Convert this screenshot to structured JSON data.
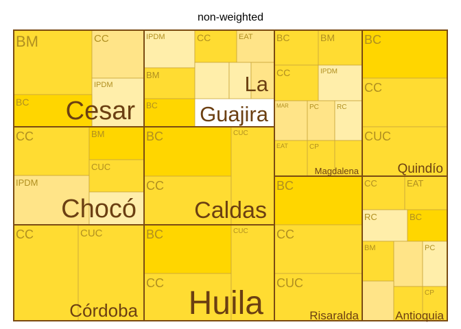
{
  "chart_data": {
    "type": "treemap",
    "title": "non-weighted",
    "colors": {
      "scale": [
        "#ffeeaa",
        "#ffe488",
        "#ffdc32",
        "#ffd600"
      ],
      "region_border": "#7a4a12",
      "tile_border": "#c9a53a",
      "tile_text": "#b08f20",
      "region_text": "#6b3f12"
    },
    "regions": [
      {
        "name": "Cesar",
        "tiles": [
          {
            "label": "BM",
            "value": 2.4,
            "shade": 2
          },
          {
            "label": "CC",
            "value": 1.7,
            "shade": 1
          },
          {
            "label": "IPDM",
            "value": 1.0,
            "shade": 0
          },
          {
            "label": "BC",
            "value": 1.0,
            "shade": 3
          }
        ]
      },
      {
        "name": "La Guajira",
        "tiles": [
          {
            "label": "IPDM",
            "value": 1.2,
            "shade": 0
          },
          {
            "label": "CC",
            "value": 1.0,
            "shade": 2
          },
          {
            "label": "EAT",
            "value": 1.1,
            "shade": 1
          },
          {
            "label": "BM",
            "value": 0.9,
            "shade": 2
          },
          {
            "label": "BC",
            "value": 0.9,
            "shade": 3
          },
          {
            "label": "",
            "value": 0.9,
            "shade": 0
          },
          {
            "label": "",
            "value": 0.4,
            "shade": 0
          },
          {
            "label": "",
            "value": 0.4,
            "shade": 1
          }
        ]
      },
      {
        "name": "Magdalena",
        "tiles": [
          {
            "label": "BC",
            "value": 1.3,
            "shade": 2
          },
          {
            "label": "BM",
            "value": 1.3,
            "shade": 2
          },
          {
            "label": "CC",
            "value": 1.1,
            "shade": 2
          },
          {
            "label": "IPDM",
            "value": 1.2,
            "shade": 0
          },
          {
            "label": "MAR",
            "value": 1.0,
            "shade": 1
          },
          {
            "label": "PC",
            "value": 0.9,
            "shade": 1
          },
          {
            "label": "RC",
            "value": 0.9,
            "shade": 0
          },
          {
            "label": "EAT",
            "value": 1.0,
            "shade": 2
          },
          {
            "label": "CP",
            "value": 0.9,
            "shade": 2
          },
          {
            "label": "",
            "value": 0.9,
            "shade": 2
          }
        ]
      },
      {
        "name": "Quindío",
        "tiles": [
          {
            "label": "BC",
            "value": 2.0,
            "shade": 3
          },
          {
            "label": "CC",
            "value": 2.1,
            "shade": 2
          },
          {
            "label": "CUC",
            "value": 2.1,
            "shade": 2
          }
        ]
      },
      {
        "name": "Chocó",
        "tiles": [
          {
            "label": "CC",
            "value": 2.6,
            "shade": 2
          },
          {
            "label": "IPDM",
            "value": 2.6,
            "shade": 1
          },
          {
            "label": "BM",
            "value": 1.0,
            "shade": 3
          },
          {
            "label": "CUC",
            "value": 1.0,
            "shade": 2
          },
          {
            "label": "",
            "value": 1.0,
            "shade": 0
          }
        ]
      },
      {
        "name": "Caldas",
        "tiles": [
          {
            "label": "BC",
            "value": 2.8,
            "shade": 3
          },
          {
            "label": "CC",
            "value": 2.8,
            "shade": 2
          },
          {
            "label": "CUC",
            "value": 2.6,
            "shade": 2
          }
        ]
      },
      {
        "name": "Córdoba",
        "tiles": [
          {
            "label": "CC",
            "value": 3.7,
            "shade": 2
          },
          {
            "label": "CUC",
            "value": 3.7,
            "shade": 2
          }
        ]
      },
      {
        "name": "Huila",
        "tiles": [
          {
            "label": "BC",
            "value": 3.0,
            "shade": 3
          },
          {
            "label": "CC",
            "value": 3.0,
            "shade": 2
          },
          {
            "label": "CUC",
            "value": 2.6,
            "shade": 2
          }
        ]
      },
      {
        "name": "Risaralda",
        "tiles": [
          {
            "label": "BC",
            "value": 3.1,
            "shade": 3
          },
          {
            "label": "CC",
            "value": 3.1,
            "shade": 2
          },
          {
            "label": "CUC",
            "value": 3.1,
            "shade": 2
          }
        ]
      },
      {
        "name": "Antioquia",
        "tiles": [
          {
            "label": "CC",
            "value": 1.3,
            "shade": 2
          },
          {
            "label": "EAT",
            "value": 1.3,
            "shade": 2
          },
          {
            "label": "RC",
            "value": 1.0,
            "shade": 0
          },
          {
            "label": "BC",
            "value": 1.0,
            "shade": 3
          },
          {
            "label": "BM",
            "value": 1.1,
            "shade": 2
          },
          {
            "label": "",
            "value": 0.7,
            "shade": 1
          },
          {
            "label": "PC",
            "value": 0.7,
            "shade": 0
          },
          {
            "label": "",
            "value": 0.9,
            "shade": 1
          },
          {
            "label": "",
            "value": 0.9,
            "shade": 2
          },
          {
            "label": "CP",
            "value": 0.9,
            "shade": 2
          }
        ]
      }
    ]
  }
}
